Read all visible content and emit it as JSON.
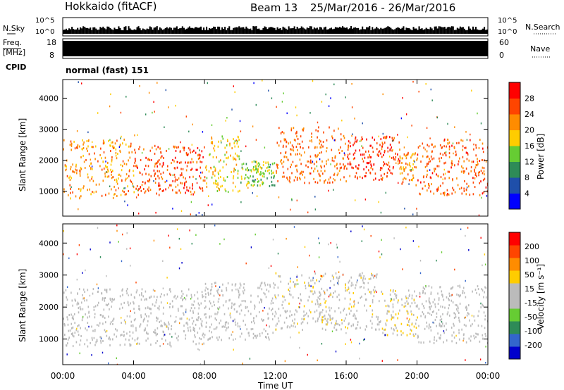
{
  "header": {
    "station": "Hokkaido (fitACF)",
    "beam": "Beam 13",
    "date_range": "25/Mar/2016 - 26/Mar/2016"
  },
  "noise_panel": {
    "left_label": "N.Sky",
    "right_label": "N.Search",
    "tick_top": "10^5",
    "tick_bottom": "10^0"
  },
  "freq_panel": {
    "left_label": "Freq.",
    "left_unit": "[MHz]",
    "left_ticks": [
      "18",
      "8"
    ],
    "right_label": "Nave",
    "right_ticks": [
      "60",
      "0"
    ]
  },
  "cpid": {
    "label": "CPID",
    "value": "normal (fast) 151"
  },
  "colors": {
    "power_scale": [
      "#0000ff",
      "#1f4faa",
      "#2e8b57",
      "#66cc33",
      "#ffcc00",
      "#ff8c00",
      "#ff4500",
      "#ff0000"
    ],
    "velocity_scale": [
      "#0000cc",
      "#3366cc",
      "#2e8b57",
      "#66cc33",
      "#bbbbbb",
      "#bbbbbb",
      "#ffcc00",
      "#ff8c00",
      "#ff4500",
      "#ff0000"
    ]
  },
  "chart_data": [
    {
      "type": "heatmap",
      "name": "power",
      "ylabel": "Slant Range [km]",
      "yticks": [
        "4000",
        "3000",
        "2000",
        "1000"
      ],
      "ylim": [
        200,
        4600
      ],
      "xlim": [
        0,
        24
      ],
      "colorbar_label": "Power [dB]",
      "colorbar_ticks": [
        "28",
        "24",
        "20",
        "16",
        "12",
        "8",
        "4"
      ],
      "clim": [
        0,
        32
      ],
      "bands": [
        {
          "t0": 0,
          "t1": 4,
          "r0": 800,
          "r1": 2700,
          "v": 22
        },
        {
          "t0": 4,
          "t1": 8,
          "r0": 900,
          "r1": 2500,
          "v": 26
        },
        {
          "t0": 8,
          "t1": 10,
          "r0": 1000,
          "r1": 2800,
          "v": 18
        },
        {
          "t0": 10,
          "t1": 12,
          "r0": 1200,
          "r1": 2000,
          "v": 14
        },
        {
          "t0": 12,
          "t1": 16,
          "r0": 1300,
          "r1": 3100,
          "v": 24
        },
        {
          "t0": 16,
          "t1": 19,
          "r0": 1400,
          "r1": 2800,
          "v": 27
        },
        {
          "t0": 19,
          "t1": 20,
          "r0": 1200,
          "r1": 2300,
          "v": 22
        },
        {
          "t0": 20,
          "t1": 24,
          "r0": 900,
          "r1": 2700,
          "v": 25
        }
      ]
    },
    {
      "type": "heatmap",
      "name": "velocity",
      "ylabel": "Slant Range [km]",
      "yticks": [
        "4000",
        "3000",
        "2000",
        "1000"
      ],
      "ylim": [
        200,
        4600
      ],
      "xlim": [
        0,
        24
      ],
      "xticks": [
        "00:00",
        "04:00",
        "08:00",
        "12:00",
        "16:00",
        "20:00",
        "00:00"
      ],
      "xlabel": "Time UT",
      "colorbar_label": "Velocity [m s⁻¹]",
      "colorbar_ticks": [
        "200",
        "100",
        "50",
        "15",
        "-15",
        "-50",
        "-100",
        "-200"
      ],
      "clim": [
        -250,
        250
      ],
      "bands": [
        {
          "t0": 0,
          "t1": 8,
          "r0": 800,
          "r1": 2600,
          "v": 0
        },
        {
          "t0": 8,
          "t1": 12,
          "r0": 1000,
          "r1": 2800,
          "v": 0
        },
        {
          "t0": 12,
          "t1": 18,
          "r0": 1300,
          "r1": 3100,
          "v": 30
        },
        {
          "t0": 18,
          "t1": 20,
          "r0": 1100,
          "r1": 2600,
          "v": 40
        },
        {
          "t0": 20,
          "t1": 24,
          "r0": 900,
          "r1": 2700,
          "v": 0
        }
      ]
    }
  ]
}
